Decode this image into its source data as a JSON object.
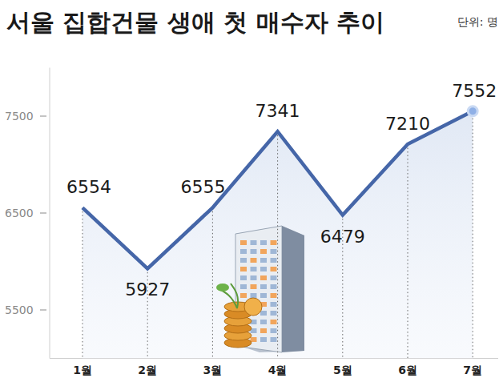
{
  "chart_data": {
    "type": "line",
    "title": "서울 집합건물 생애 첫 매수자 추이",
    "ylabel": "단위: 명",
    "categories": [
      "1월",
      "2월",
      "3월",
      "4월",
      "5월",
      "6월",
      "7월"
    ],
    "values": [
      6554,
      5927,
      6555,
      7341,
      6479,
      7210,
      7552
    ],
    "color": "#4566a8",
    "ylim": [
      5000,
      8000
    ],
    "yticks": [
      5500,
      6500,
      7500
    ],
    "grid": false,
    "data_labels": true
  }
}
